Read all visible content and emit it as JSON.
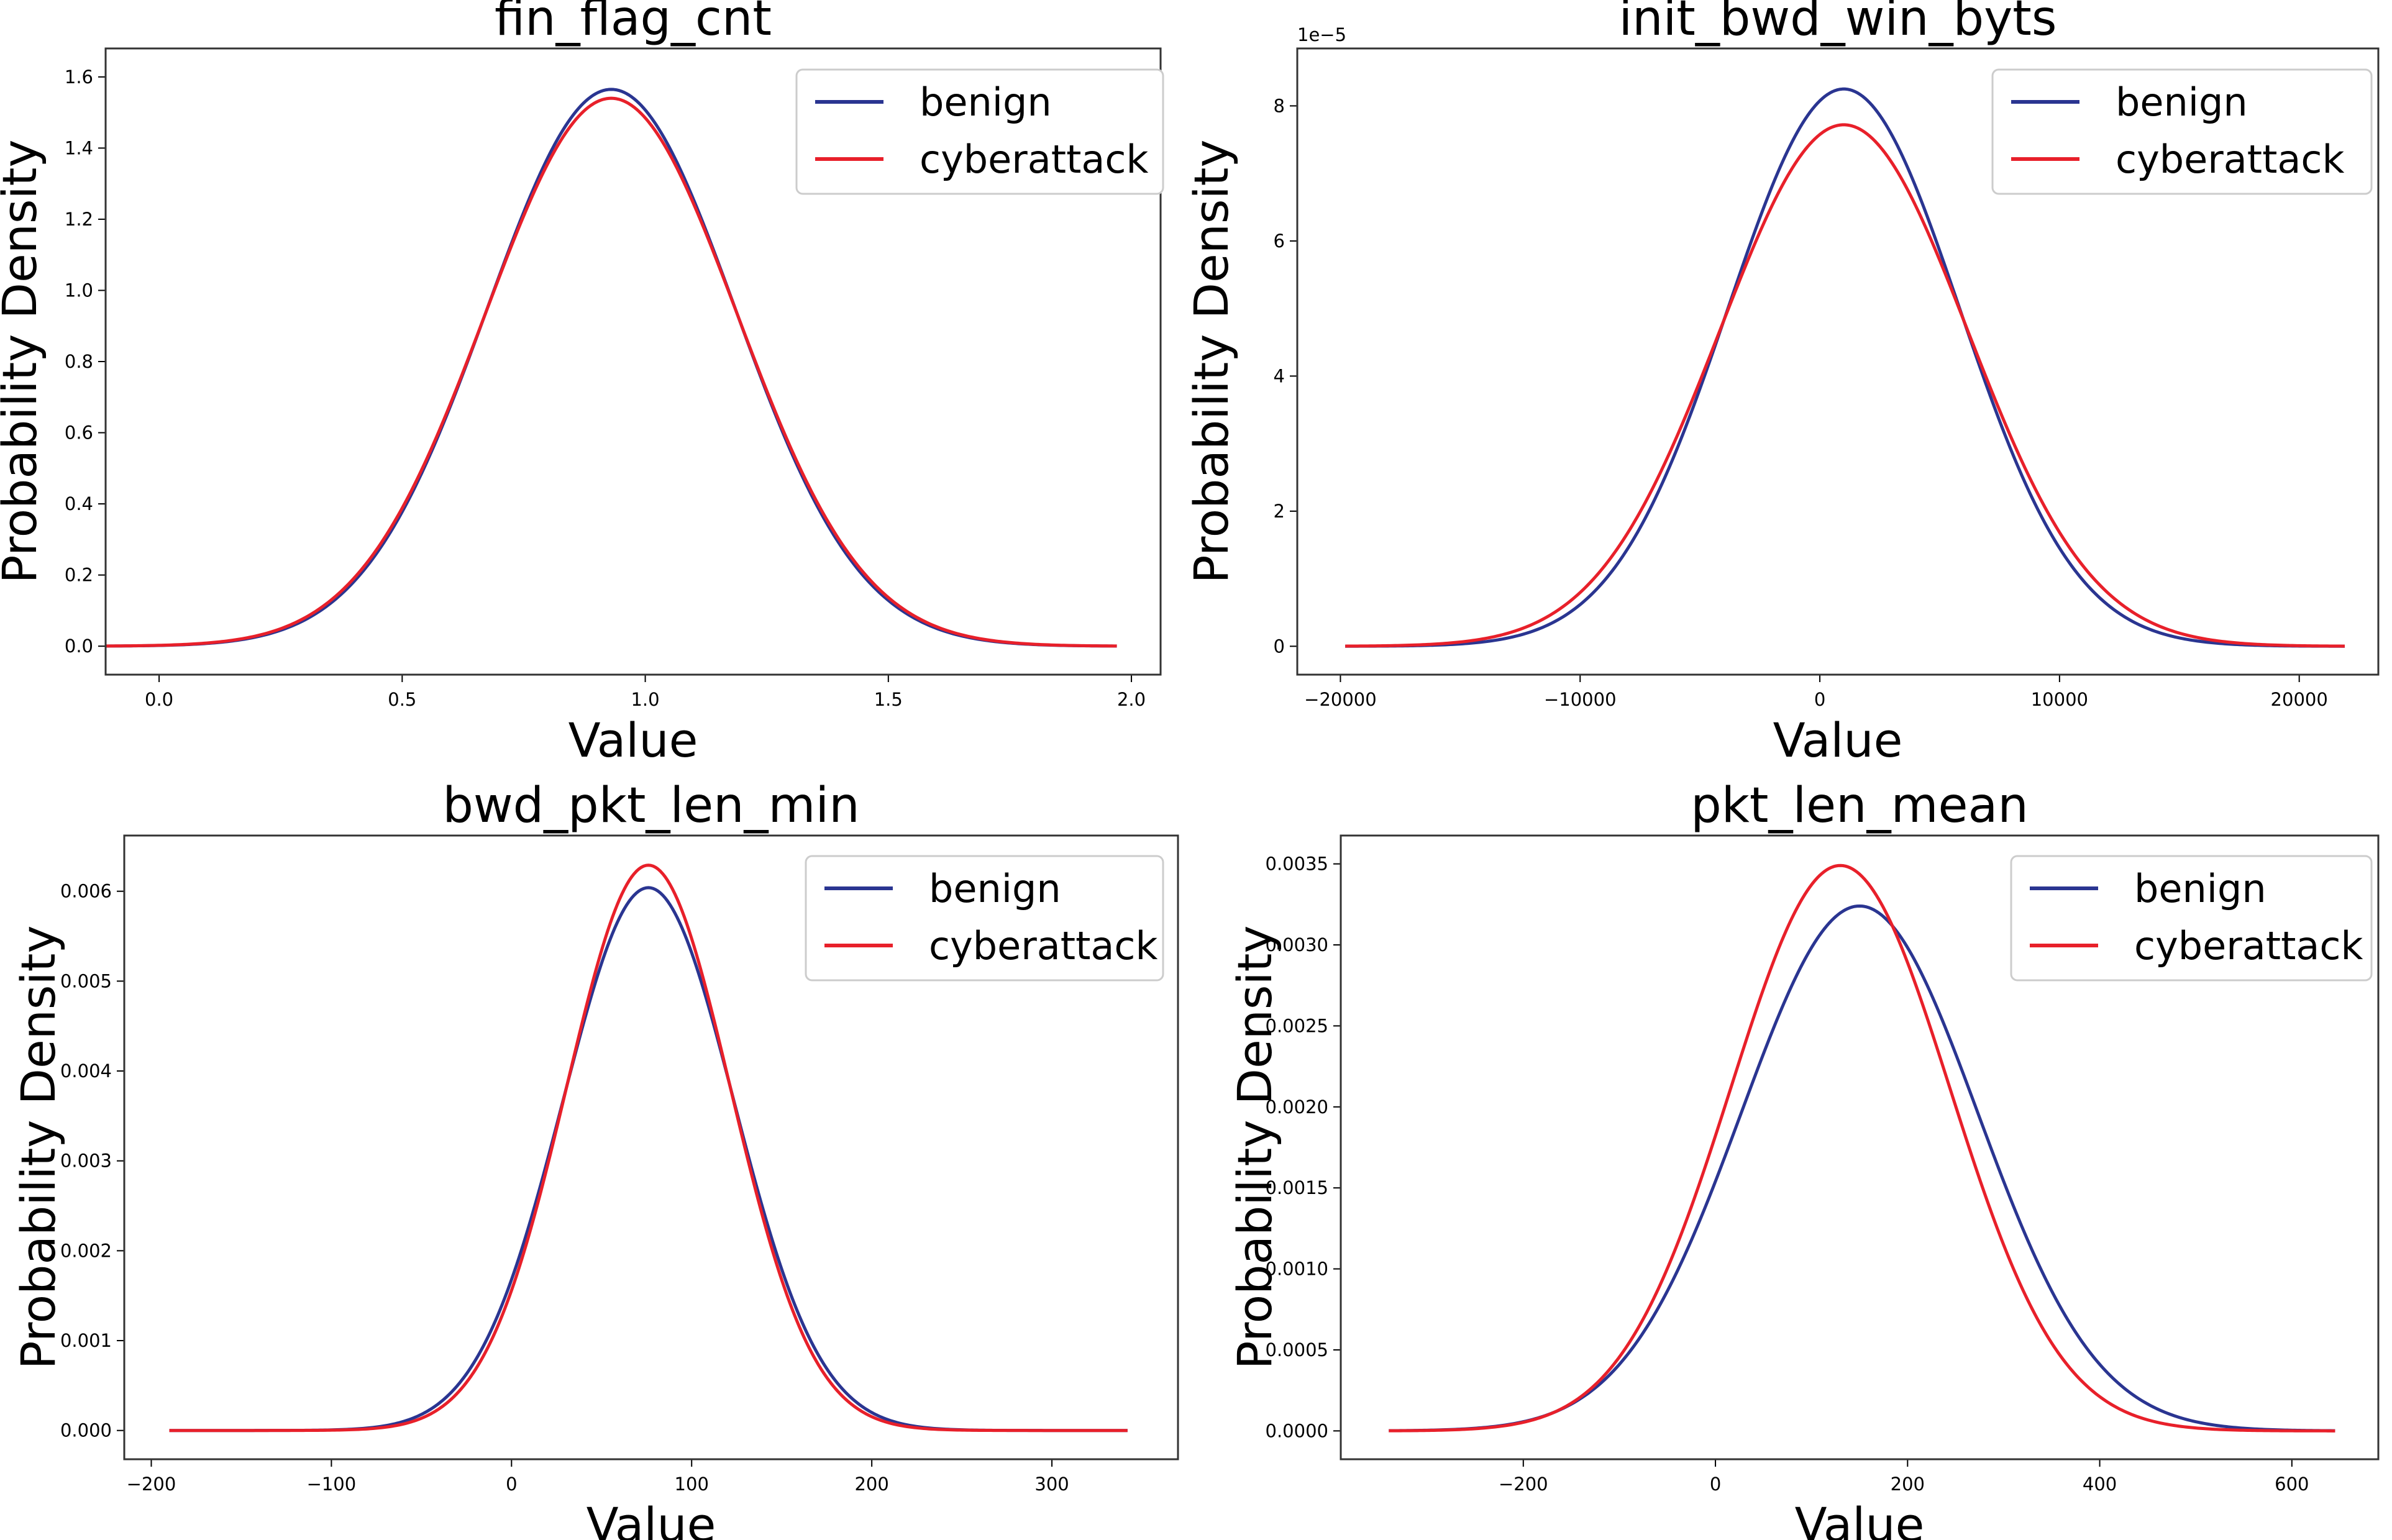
{
  "colors": {
    "benign": "#2a3591",
    "cyberattack": "#e8202a",
    "axes": "#333333"
  },
  "chart_data": [
    {
      "type": "line",
      "title": "fin_flag_cnt",
      "xlabel": "Value",
      "ylabel": "Probability Density",
      "xlim": [
        -0.11,
        2.06
      ],
      "ylim": [
        -0.08,
        1.68
      ],
      "xticks": [
        0.0,
        0.5,
        1.0,
        1.5,
        2.0
      ],
      "xtick_labels": [
        "0.0",
        "0.5",
        "1.0",
        "1.5",
        "2.0"
      ],
      "yticks": [
        0.0,
        0.2,
        0.4,
        0.6,
        0.8,
        1.0,
        1.2,
        1.4,
        1.6
      ],
      "ytick_labels": [
        "0.0",
        "0.2",
        "0.4",
        "0.6",
        "0.8",
        "1.0",
        "1.2",
        "1.4",
        "1.6"
      ],
      "y_offset_label": "",
      "x_range": [
        -0.11,
        1.97
      ],
      "legend": "top-right",
      "series": [
        {
          "name": "benign",
          "mean": 0.93,
          "std": 0.255,
          "peak": 1.565
        },
        {
          "name": "cyberattack",
          "mean": 0.93,
          "std": 0.259,
          "peak": 1.54
        }
      ]
    },
    {
      "type": "line",
      "title": "init_bwd_win_byts",
      "xlabel": "Value",
      "ylabel": "Probability Density",
      "xlim": [
        -21800,
        23300
      ],
      "ylim": [
        -0.42,
        8.85
      ],
      "xticks": [
        -20000,
        -10000,
        0,
        10000,
        20000
      ],
      "xtick_labels": [
        "−20000",
        "−10000",
        "0",
        "10000",
        "20000"
      ],
      "yticks": [
        0,
        2,
        4,
        6,
        8
      ],
      "ytick_labels": [
        "0",
        "2",
        "4",
        "6",
        "8"
      ],
      "y_offset_label": "1e−5",
      "x_range": [
        -19800,
        21900
      ],
      "legend": "top-right",
      "series": [
        {
          "name": "benign",
          "mean": 1000,
          "std": 4830,
          "peak": 8.25
        },
        {
          "name": "cyberattack",
          "mean": 1000,
          "std": 5160,
          "peak": 7.72
        }
      ]
    },
    {
      "type": "line",
      "title": "bwd_pkt_len_min",
      "xlabel": "Value",
      "ylabel": "Probability Density",
      "xlim": [
        -215,
        370
      ],
      "ylim": [
        -0.00032,
        0.00662
      ],
      "xticks": [
        -200,
        -100,
        0,
        100,
        200,
        300
      ],
      "xtick_labels": [
        "−200",
        "−100",
        "0",
        "100",
        "200",
        "300"
      ],
      "yticks": [
        0.0,
        0.001,
        0.002,
        0.003,
        0.004,
        0.005,
        0.006
      ],
      "ytick_labels": [
        "0.000",
        "0.001",
        "0.002",
        "0.003",
        "0.004",
        "0.005",
        "0.006"
      ],
      "y_offset_label": "",
      "x_range": [
        -190,
        342
      ],
      "legend": "top-right",
      "series": [
        {
          "name": "benign",
          "mean": 76,
          "std": 47.5,
          "peak": 0.00604
        },
        {
          "name": "cyberattack",
          "mean": 76,
          "std": 45.5,
          "peak": 0.00629
        }
      ]
    },
    {
      "type": "line",
      "title": "pkt_len_mean",
      "xlabel": "Value",
      "ylabel": "Probability Density",
      "xlim": [
        -390,
        690
      ],
      "ylim": [
        -0.000175,
        0.003675
      ],
      "xticks": [
        -200,
        0,
        200,
        400,
        600
      ],
      "xtick_labels": [
        "−200",
        "0",
        "200",
        "400",
        "600"
      ],
      "yticks": [
        0.0,
        0.0005,
        0.001,
        0.0015,
        0.002,
        0.0025,
        0.003,
        0.0035
      ],
      "ytick_labels": [
        "0.0000",
        "0.0005",
        "0.0010",
        "0.0015",
        "0.0020",
        "0.0025",
        "0.0030",
        "0.0035"
      ],
      "y_offset_label": "",
      "x_range": [
        -340,
        645
      ],
      "legend": "top-right",
      "series": [
        {
          "name": "benign",
          "mean": 150,
          "std": 123,
          "peak": 0.00324
        },
        {
          "name": "cyberattack",
          "mean": 130,
          "std": 114,
          "peak": 0.00349
        }
      ]
    }
  ]
}
